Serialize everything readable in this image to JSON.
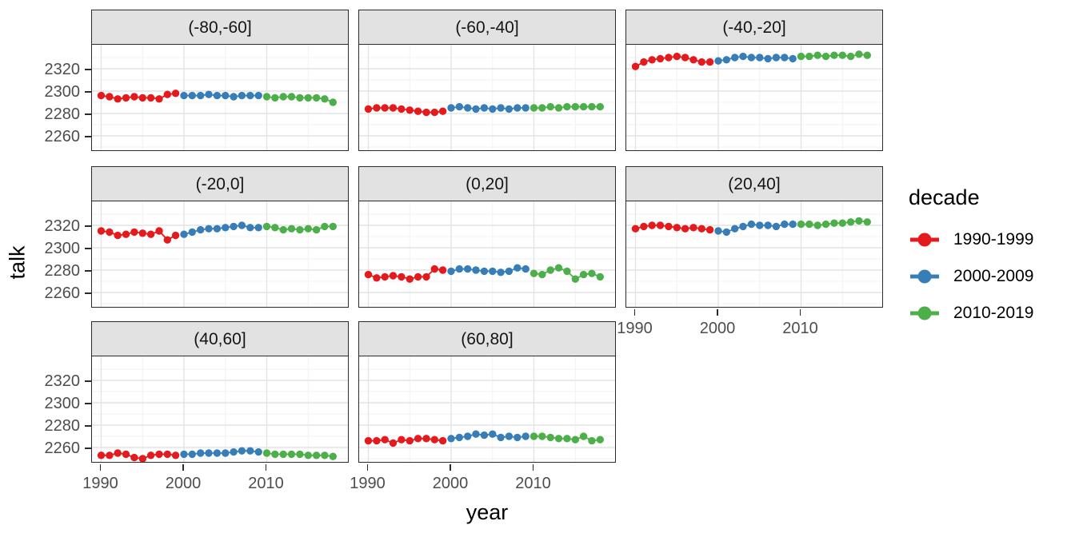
{
  "figure": {
    "xlabel": "year",
    "ylabel": "talk",
    "legend": {
      "title": "decade",
      "entries": [
        {
          "label": "1990-1999",
          "color": "#E41A1C"
        },
        {
          "label": "2000-2009",
          "color": "#377EB8"
        },
        {
          "label": "2010-2019",
          "color": "#4DAF4A"
        }
      ]
    },
    "theme": {
      "strip_bg": "#E2E2E2",
      "panel_border": "#2B2B2B",
      "grid_major": "#E4E4E4",
      "grid_minor": "#F2F2F2",
      "tick_text": "#4D4D4D"
    }
  },
  "chart_data": {
    "type": "scatter",
    "title": "",
    "xlabel": "year",
    "ylabel": "talk",
    "legend_title": "decade",
    "legend_position": "right",
    "grid": "major+minor",
    "x_ticks": [
      1990,
      2000,
      2010
    ],
    "y_ticks": [
      2260,
      2280,
      2300,
      2320
    ],
    "x_minor": [
      1995,
      2005,
      2015
    ],
    "y_minor": [
      2250,
      2270,
      2290,
      2310,
      2330
    ],
    "x_range": [
      1989,
      2020
    ],
    "y_range": [
      2246,
      2341
    ],
    "years": [
      1990,
      1991,
      1992,
      1993,
      1994,
      1995,
      1996,
      1997,
      1998,
      1999,
      2000,
      2001,
      2002,
      2003,
      2004,
      2005,
      2006,
      2007,
      2008,
      2009,
      2010,
      2011,
      2012,
      2013,
      2014,
      2015,
      2016,
      2017,
      2018
    ],
    "decades": [
      {
        "name": "1990-1999",
        "color": "#E41A1C",
        "start": 1990,
        "end": 1999
      },
      {
        "name": "2000-2009",
        "color": "#377EB8",
        "start": 2000,
        "end": 2009
      },
      {
        "name": "2010-2019",
        "color": "#4DAF4A",
        "start": 2010,
        "end": 2018
      }
    ],
    "facets": [
      {
        "label": "(-80,-60]",
        "row": 0,
        "col": 0,
        "show_y": true,
        "show_x": false,
        "values": [
          2296,
          2295,
          2293,
          2294,
          2295,
          2294,
          2294,
          2293,
          2297,
          2298,
          2296,
          2296,
          2296,
          2297,
          2296,
          2296,
          2295,
          2296,
          2296,
          2296,
          2295,
          2294,
          2295,
          2295,
          2294,
          2294,
          2294,
          2293,
          2290
        ]
      },
      {
        "label": "(-60,-40]",
        "row": 0,
        "col": 1,
        "show_y": false,
        "show_x": false,
        "values": [
          2284,
          2285,
          2285,
          2285,
          2284,
          2283,
          2282,
          2281,
          2281,
          2282,
          2285,
          2286,
          2285,
          2284,
          2285,
          2284,
          2285,
          2284,
          2285,
          2285,
          2285,
          2285,
          2286,
          2285,
          2286,
          2286,
          2286,
          2286,
          2286
        ]
      },
      {
        "label": "(-40,-20]",
        "row": 0,
        "col": 2,
        "show_y": false,
        "show_x": false,
        "values": [
          2322,
          2326,
          2328,
          2329,
          2330,
          2331,
          2330,
          2328,
          2326,
          2326,
          2327,
          2328,
          2330,
          2331,
          2330,
          2330,
          2329,
          2330,
          2330,
          2329,
          2331,
          2331,
          2332,
          2331,
          2332,
          2332,
          2331,
          2333,
          2332
        ]
      },
      {
        "label": "(-20,0]",
        "row": 1,
        "col": 0,
        "show_y": true,
        "show_x": false,
        "values": [
          2315,
          2314,
          2311,
          2312,
          2314,
          2313,
          2312,
          2315,
          2307,
          2311,
          2312,
          2314,
          2316,
          2317,
          2317,
          2318,
          2319,
          2320,
          2318,
          2318,
          2319,
          2318,
          2316,
          2317,
          2316,
          2317,
          2316,
          2319,
          2319
        ]
      },
      {
        "label": "(0,20]",
        "row": 1,
        "col": 1,
        "show_y": false,
        "show_x": false,
        "values": [
          2276,
          2273,
          2274,
          2275,
          2274,
          2272,
          2274,
          2274,
          2281,
          2280,
          2279,
          2281,
          2281,
          2280,
          2279,
          2279,
          2278,
          2279,
          2282,
          2281,
          2277,
          2276,
          2280,
          2282,
          2279,
          2272,
          2276,
          2277,
          2274
        ]
      },
      {
        "label": "(20,40]",
        "row": 1,
        "col": 2,
        "show_y": false,
        "show_x": true,
        "values": [
          2317,
          2319,
          2320,
          2320,
          2319,
          2318,
          2317,
          2318,
          2317,
          2316,
          2315,
          2314,
          2317,
          2319,
          2321,
          2320,
          2320,
          2319,
          2321,
          2321,
          2321,
          2321,
          2320,
          2321,
          2322,
          2322,
          2323,
          2324,
          2323
        ]
      },
      {
        "label": "(40,60]",
        "row": 2,
        "col": 0,
        "show_y": true,
        "show_x": true,
        "values": [
          2253,
          2253,
          2255,
          2254,
          2251,
          2250,
          2253,
          2254,
          2254,
          2253,
          2254,
          2254,
          2255,
          2255,
          2255,
          2255,
          2256,
          2257,
          2257,
          2256,
          2255,
          2254,
          2254,
          2254,
          2254,
          2253,
          2253,
          2253,
          2252
        ]
      },
      {
        "label": "(60,80]",
        "row": 2,
        "col": 1,
        "show_y": false,
        "show_x": true,
        "values": [
          2266,
          2266,
          2267,
          2264,
          2267,
          2266,
          2268,
          2268,
          2267,
          2266,
          2268,
          2269,
          2270,
          2272,
          2271,
          2272,
          2269,
          2270,
          2269,
          2270,
          2270,
          2270,
          2269,
          2268,
          2268,
          2267,
          2270,
          2266,
          2267
        ]
      }
    ]
  }
}
